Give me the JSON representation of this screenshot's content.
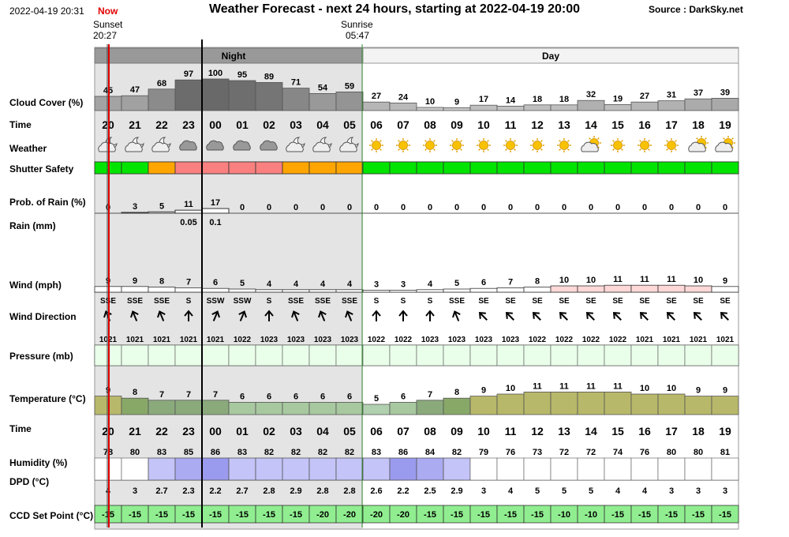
{
  "header": {
    "datetime": "2022-04-19 20:31",
    "now_label": "Now",
    "title": "Weather Forecast - next 24 hours, starting at 2022-04-19 20:00",
    "source": "Source : DarkSky.net",
    "sunset_label": "Sunset",
    "sunset_time": "20:27",
    "sunrise_label": "Sunrise",
    "sunrise_time": "05:47"
  },
  "period_labels": {
    "night": "Night",
    "day": "Day"
  },
  "row_labels": {
    "cloud": "Cloud Cover (%)",
    "time": "Time",
    "weather": "Weather",
    "shutter": "Shutter Safety",
    "prob_rain": "Prob. of Rain (%)",
    "rain": "Rain (mm)",
    "wind": "Wind (mph)",
    "wind_dir": "Wind Direction",
    "pressure": "Pressure (mb)",
    "temperature": "Temperature (°C)",
    "time2": "Time",
    "humidity": "Humidity (%)",
    "dpd": "DPD (°C)",
    "ccd": "CCD Set Point (°C)"
  },
  "chart_data": {
    "type": "table",
    "hours": [
      "20",
      "21",
      "22",
      "23",
      "00",
      "01",
      "02",
      "03",
      "04",
      "05",
      "06",
      "07",
      "08",
      "09",
      "10",
      "11",
      "12",
      "13",
      "14",
      "15",
      "16",
      "17",
      "18",
      "19"
    ],
    "cloud_cover": [
      45,
      47,
      68,
      97,
      100,
      95,
      89,
      71,
      54,
      59,
      27,
      24,
      10,
      9,
      17,
      14,
      18,
      18,
      32,
      19,
      27,
      31,
      37,
      39
    ],
    "weather_icons": [
      "partly-cloudy-night-icon",
      "partly-cloudy-night-icon",
      "partly-cloudy-night-icon",
      "cloudy-icon",
      "cloudy-icon",
      "cloudy-icon",
      "cloudy-icon",
      "partly-cloudy-night-icon",
      "partly-cloudy-night-icon",
      "partly-cloudy-night-icon",
      "sun-icon",
      "sun-icon",
      "sun-icon",
      "sun-icon",
      "sun-icon",
      "sun-icon",
      "sun-icon",
      "sun-icon",
      "partly-cloudy-day-icon",
      "sun-icon",
      "sun-icon",
      "sun-icon",
      "partly-cloudy-day-icon",
      "partly-cloudy-day-icon"
    ],
    "shutter_safety": [
      "safe",
      "safe",
      "marginal",
      "unsafe",
      "unsafe",
      "unsafe",
      "unsafe",
      "marginal",
      "marginal",
      "marginal",
      "safe",
      "safe",
      "safe",
      "safe",
      "safe",
      "safe",
      "safe",
      "safe",
      "safe",
      "safe",
      "safe",
      "safe",
      "safe",
      "safe"
    ],
    "prob_rain": [
      0,
      3,
      5,
      11,
      17,
      0,
      0,
      0,
      0,
      0,
      0,
      0,
      0,
      0,
      0,
      0,
      0,
      0,
      0,
      0,
      0,
      0,
      0,
      0
    ],
    "rain_mm": [
      null,
      null,
      null,
      "0.05",
      "0.1",
      null,
      null,
      null,
      null,
      null,
      null,
      null,
      null,
      null,
      null,
      null,
      null,
      null,
      null,
      null,
      null,
      null,
      null,
      null
    ],
    "wind": [
      9,
      9,
      8,
      7,
      6,
      5,
      4,
      4,
      4,
      4,
      3,
      3,
      4,
      5,
      6,
      7,
      8,
      10,
      10,
      11,
      11,
      11,
      10,
      9
    ],
    "wind_direction": [
      "SSE",
      "SSE",
      "SSE",
      "S",
      "SSW",
      "SSW",
      "S",
      "SSE",
      "SSE",
      "SSE",
      "S",
      "S",
      "S",
      "SSE",
      "SE",
      "SE",
      "SE",
      "SE",
      "SE",
      "SE",
      "SE",
      "SE",
      "SE",
      "SE"
    ],
    "pressure": [
      1021,
      1021,
      1021,
      1021,
      1021,
      1022,
      1023,
      1023,
      1023,
      1023,
      1022,
      1022,
      1023,
      1023,
      1023,
      1023,
      1022,
      1022,
      1022,
      1022,
      1021,
      1021,
      1021,
      1021
    ],
    "temperature": [
      9,
      8,
      7,
      7,
      7,
      6,
      6,
      6,
      6,
      6,
      5,
      6,
      7,
      8,
      9,
      10,
      11,
      11,
      11,
      11,
      10,
      10,
      9,
      9
    ],
    "humidity": [
      78,
      80,
      83,
      85,
      86,
      83,
      82,
      82,
      82,
      82,
      83,
      86,
      84,
      82,
      79,
      76,
      73,
      72,
      72,
      74,
      76,
      80,
      80,
      81
    ],
    "dpd": [
      "4",
      "3",
      "2.7",
      "2.3",
      "2.2",
      "2.7",
      "2.8",
      "2.9",
      "2.8",
      "2.8",
      "2.6",
      "2.2",
      "2.5",
      "2.9",
      "3",
      "4",
      "5",
      "5",
      "5",
      "4",
      "4",
      "3",
      "3",
      "3"
    ],
    "ccd_set_point": [
      -15,
      -15,
      -15,
      -15,
      -15,
      -15,
      -15,
      -15,
      -20,
      -20,
      -20,
      -20,
      -15,
      -15,
      -15,
      -15,
      -15,
      -10,
      -10,
      -15,
      -15,
      -15,
      -15,
      -15
    ]
  },
  "colors": {
    "night_bg": "#e4e4e4",
    "night_band": "#999999",
    "safe": "#00e400",
    "marginal": "#ffa500",
    "unsafe": "#fa8080",
    "ccd_bg": "#90ee90",
    "pressure_bg": "#eaffea",
    "now_line": "#e00000",
    "sun_line": "#2e8b2e"
  }
}
